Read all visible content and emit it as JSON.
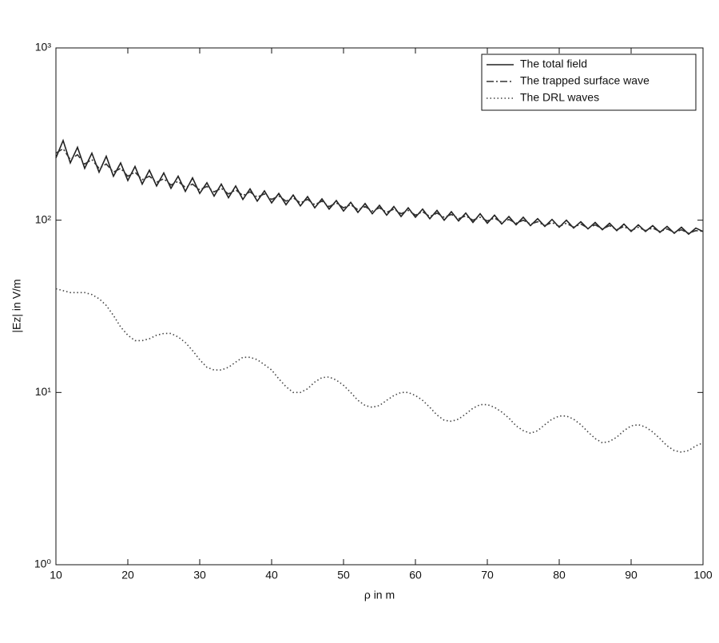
{
  "chart_data": {
    "type": "line",
    "xlabel": "ρ in m",
    "ylabel": "|Ez| in V/m",
    "x": [
      10,
      11,
      12,
      13,
      14,
      15,
      16,
      17,
      18,
      19,
      20,
      21,
      22,
      23,
      24,
      25,
      26,
      27,
      28,
      29,
      30,
      31,
      32,
      33,
      34,
      35,
      36,
      37,
      38,
      39,
      40,
      41,
      42,
      43,
      44,
      45,
      46,
      47,
      48,
      49,
      50,
      51,
      52,
      53,
      54,
      55,
      56,
      57,
      58,
      59,
      60,
      61,
      62,
      63,
      64,
      65,
      66,
      67,
      68,
      69,
      70,
      71,
      72,
      73,
      74,
      75,
      76,
      77,
      78,
      79,
      80,
      81,
      82,
      83,
      84,
      85,
      86,
      87,
      88,
      89,
      90,
      91,
      92,
      93,
      94,
      95,
      96,
      97,
      98,
      99,
      100
    ],
    "series": [
      {
        "name": "The total field",
        "color": "#222222",
        "dash": "solid",
        "values": [
          230,
          290,
          215,
          265,
          200,
          245,
          190,
          235,
          180,
          215,
          170,
          205,
          162,
          195,
          158,
          188,
          153,
          180,
          147,
          176,
          143,
          165,
          138,
          162,
          135,
          158,
          132,
          152,
          129,
          148,
          126,
          143,
          123,
          140,
          121,
          137,
          118,
          133,
          116,
          130,
          113,
          127,
          111,
          125,
          109,
          122,
          107,
          120,
          105,
          118,
          104,
          116,
          102,
          114,
          100,
          112,
          99,
          110,
          97,
          109,
          96,
          107,
          95,
          105,
          94,
          104,
          93,
          102,
          92,
          101,
          91,
          100,
          90,
          98,
          89,
          97,
          88,
          96,
          87,
          95,
          86,
          94,
          86,
          93,
          85,
          92,
          84,
          91,
          83,
          90,
          86
        ]
      },
      {
        "name": "The trapped surface wave",
        "color": "#333333",
        "dash": "dashdot",
        "values": [
          245,
          260,
          225,
          240,
          212,
          225,
          200,
          212,
          190,
          200,
          180,
          190,
          172,
          180,
          166,
          174,
          160,
          168,
          155,
          162,
          150,
          157,
          146,
          153,
          142,
          150,
          139,
          146,
          136,
          142,
          132,
          138,
          129,
          135,
          126,
          132,
          123,
          129,
          120,
          126,
          118,
          123,
          115,
          120,
          113,
          118,
          111,
          116,
          109,
          114,
          107,
          112,
          105,
          110,
          104,
          108,
          102,
          106,
          100,
          104,
          99,
          103,
          97,
          101,
          96,
          100,
          95,
          98,
          93,
          97,
          92,
          96,
          91,
          95,
          90,
          94,
          89,
          93,
          88,
          92,
          87,
          91,
          87,
          90,
          86,
          89,
          85,
          88,
          84,
          87,
          86
        ]
      },
      {
        "name": "The DRL waves",
        "color": "#444444",
        "dash": "dotted",
        "values": [
          40,
          39,
          38,
          38,
          38,
          37,
          35,
          32,
          28,
          24,
          21.5,
          20,
          20,
          20.5,
          21.5,
          22,
          22,
          21,
          19.5,
          17.5,
          15.5,
          14,
          13.5,
          13.5,
          14,
          15,
          16,
          16,
          15.5,
          14.5,
          13.5,
          12,
          10.8,
          10,
          10,
          10.5,
          11.5,
          12.2,
          12.3,
          11.8,
          11,
          10,
          9,
          8.4,
          8.2,
          8.4,
          9,
          9.6,
          10,
          10,
          9.6,
          9,
          8.2,
          7.4,
          6.9,
          6.8,
          7,
          7.5,
          8.1,
          8.5,
          8.5,
          8.2,
          7.7,
          7.1,
          6.4,
          6,
          5.8,
          6,
          6.5,
          7,
          7.3,
          7.3,
          7,
          6.5,
          5.9,
          5.4,
          5.1,
          5.2,
          5.5,
          6,
          6.4,
          6.5,
          6.3,
          5.9,
          5.4,
          4.9,
          4.6,
          4.5,
          4.6,
          4.9,
          5.1
        ]
      }
    ],
    "xlim": [
      10,
      100
    ],
    "xticks": [
      10,
      20,
      30,
      40,
      50,
      60,
      70,
      80,
      90,
      100
    ],
    "ylim": [
      1,
      1000
    ],
    "ylog": true,
    "yticks": [
      {
        "value": 1,
        "label": "10⁰"
      },
      {
        "value": 10,
        "label": "10¹"
      },
      {
        "value": 100,
        "label": "10²"
      },
      {
        "value": 1000,
        "label": "10³"
      }
    ],
    "legend": "upper right"
  }
}
